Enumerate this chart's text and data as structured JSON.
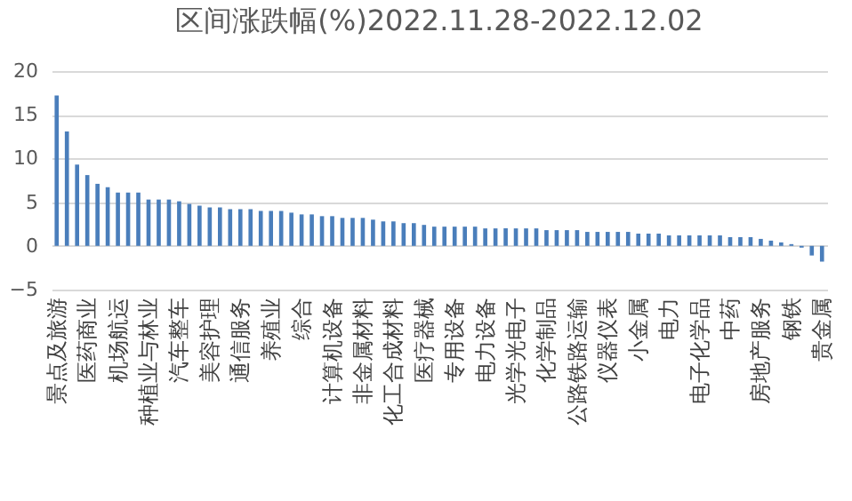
{
  "chart_data": {
    "type": "bar",
    "title": "区间涨跌幅(%)2022.11.28-2022.12.02",
    "categories": [
      "景点及旅游",
      null,
      null,
      "医药商业",
      null,
      null,
      "机场航运",
      null,
      null,
      "种植业与林业",
      null,
      null,
      "汽车整车",
      null,
      null,
      "美容护理",
      null,
      null,
      "通信服务",
      null,
      null,
      "养殖业",
      null,
      null,
      "综合",
      null,
      null,
      "计算机设备",
      null,
      null,
      "非金属材料",
      null,
      null,
      "化工合成材料",
      null,
      null,
      "医疗器械",
      null,
      null,
      "专用设备",
      null,
      null,
      "电力设备",
      null,
      null,
      "光学光电子",
      null,
      null,
      "化学制品",
      null,
      null,
      "公路铁路运输",
      null,
      null,
      "仪器仪表",
      null,
      null,
      "小金属",
      null,
      null,
      "电力",
      null,
      null,
      "电子化学品",
      null,
      null,
      "中药",
      null,
      null,
      "房地产服务",
      null,
      null,
      "钢铁",
      null,
      null,
      "贵金属"
    ],
    "values": [
      17.2,
      13.1,
      9.3,
      8.1,
      7.1,
      6.7,
      6.1,
      6.1,
      6.1,
      5.3,
      5.3,
      5.3,
      5.1,
      4.8,
      4.6,
      4.4,
      4.4,
      4.2,
      4.2,
      4.2,
      4.0,
      4.0,
      4.0,
      3.8,
      3.6,
      3.6,
      3.4,
      3.4,
      3.2,
      3.2,
      3.2,
      3.0,
      2.8,
      2.8,
      2.6,
      2.6,
      2.4,
      2.2,
      2.2,
      2.2,
      2.2,
      2.2,
      2.0,
      2.0,
      2.0,
      2.0,
      2.0,
      2.0,
      1.8,
      1.8,
      1.8,
      1.8,
      1.6,
      1.6,
      1.6,
      1.6,
      1.6,
      1.4,
      1.4,
      1.4,
      1.2,
      1.2,
      1.2,
      1.2,
      1.2,
      1.2,
      1.0,
      1.0,
      1.0,
      0.8,
      0.6,
      0.4,
      0.2,
      -0.2,
      -1.1,
      -1.8
    ],
    "color": "#4a7ebb",
    "ylim": [
      -5,
      20
    ],
    "yticks": [
      -5,
      0,
      5,
      10,
      15,
      20
    ],
    "grid": "y"
  }
}
